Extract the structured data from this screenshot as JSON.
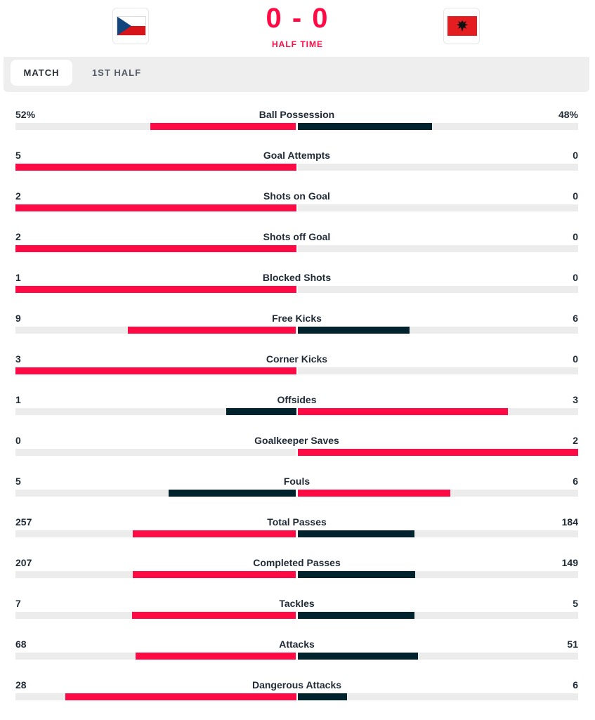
{
  "colors": {
    "accent": "#ff0a45",
    "dark": "#01232e",
    "track": "#ececec"
  },
  "header": {
    "home_flag_icon": "czech-flag-icon",
    "away_flag_icon": "albania-flag-icon",
    "score": "0 - 0",
    "status": "HALF TIME"
  },
  "tabs": [
    {
      "label": "MATCH",
      "active": true
    },
    {
      "label": "1ST HALF",
      "active": false
    }
  ],
  "stats": [
    {
      "label": "Ball Possession",
      "home": "52%",
      "away": "48%",
      "home_value": 52,
      "away_value": 48
    },
    {
      "label": "Goal Attempts",
      "home": "5",
      "away": "0",
      "home_value": 5,
      "away_value": 0
    },
    {
      "label": "Shots on Goal",
      "home": "2",
      "away": "0",
      "home_value": 2,
      "away_value": 0
    },
    {
      "label": "Shots off Goal",
      "home": "2",
      "away": "0",
      "home_value": 2,
      "away_value": 0
    },
    {
      "label": "Blocked Shots",
      "home": "1",
      "away": "0",
      "home_value": 1,
      "away_value": 0
    },
    {
      "label": "Free Kicks",
      "home": "9",
      "away": "6",
      "home_value": 9,
      "away_value": 6
    },
    {
      "label": "Corner Kicks",
      "home": "3",
      "away": "0",
      "home_value": 3,
      "away_value": 0
    },
    {
      "label": "Offsides",
      "home": "1",
      "away": "3",
      "home_value": 1,
      "away_value": 3
    },
    {
      "label": "Goalkeeper Saves",
      "home": "0",
      "away": "2",
      "home_value": 0,
      "away_value": 2
    },
    {
      "label": "Fouls",
      "home": "5",
      "away": "6",
      "home_value": 5,
      "away_value": 6
    },
    {
      "label": "Total Passes",
      "home": "257",
      "away": "184",
      "home_value": 257,
      "away_value": 184
    },
    {
      "label": "Completed Passes",
      "home": "207",
      "away": "149",
      "home_value": 207,
      "away_value": 149
    },
    {
      "label": "Tackles",
      "home": "7",
      "away": "5",
      "home_value": 7,
      "away_value": 5
    },
    {
      "label": "Attacks",
      "home": "68",
      "away": "51",
      "home_value": 68,
      "away_value": 51
    },
    {
      "label": "Dangerous Attacks",
      "home": "28",
      "away": "6",
      "home_value": 28,
      "away_value": 6
    }
  ]
}
